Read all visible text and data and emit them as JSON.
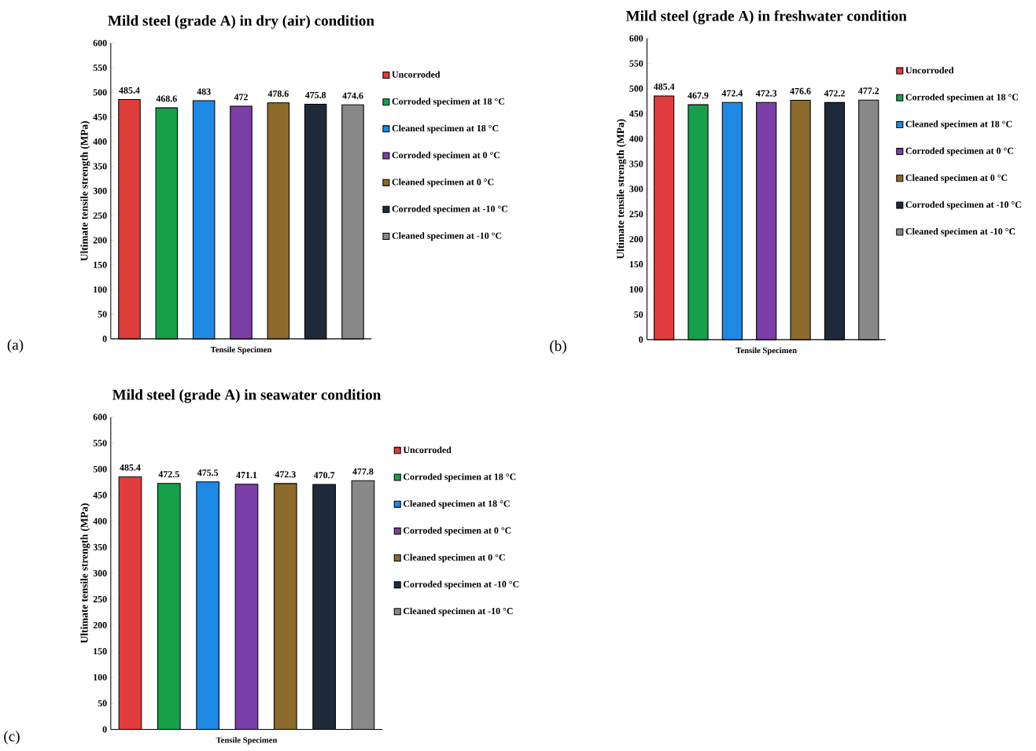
{
  "chart_data": [
    {
      "type": "bar",
      "title": "Mild steel (grade A) in dry (air) condition",
      "xlabel": "Tensile Specimen",
      "ylabel": "Ultimate tensile strength (MPa)",
      "categories": [
        null
      ],
      "ylim": [
        0,
        600
      ],
      "yticks": [
        0,
        50,
        100,
        150,
        200,
        250,
        300,
        350,
        400,
        450,
        500,
        550,
        600
      ],
      "data_labels": true,
      "legend": "right",
      "annotations": [
        "(a)"
      ],
      "series": [
        {
          "name": "Uncorroded",
          "color": "#e03c3c",
          "values": [
            485.4
          ]
        },
        {
          "name": "Corroded specimen at 18 °C",
          "color": "#16a04a",
          "values": [
            468.6
          ]
        },
        {
          "name": "Cleaned specimen at 18 °C",
          "color": "#1e88e5",
          "values": [
            483
          ]
        },
        {
          "name": "Corroded specimen at 0 °C",
          "color": "#7b3fa8",
          "values": [
            472
          ]
        },
        {
          "name": "Cleaned specimen at 0 °C",
          "color": "#8b6a2b",
          "values": [
            478.6
          ]
        },
        {
          "name": "Corroded specimen at -10 °C",
          "color": "#1f2a3a",
          "values": [
            475.8
          ]
        },
        {
          "name": "Cleaned specimen at -10 °C",
          "color": "#888888",
          "values": [
            474.6
          ]
        }
      ]
    },
    {
      "type": "bar",
      "title": "Mild steel (grade A) in freshwater condition",
      "xlabel": "Tensile Specimen",
      "ylabel": "Ultimate tensile strength (MPa)",
      "categories": [
        null
      ],
      "ylim": [
        0,
        600
      ],
      "yticks": [
        0,
        50,
        100,
        150,
        200,
        250,
        300,
        350,
        400,
        450,
        500,
        550,
        600
      ],
      "data_labels": true,
      "legend": "right",
      "annotations": [
        "(b)"
      ],
      "series": [
        {
          "name": "Uncorroded",
          "color": "#e03c3c",
          "values": [
            485.4
          ]
        },
        {
          "name": "Corroded specimen at 18 °C",
          "color": "#16a04a",
          "values": [
            467.9
          ]
        },
        {
          "name": "Cleaned specimen at 18 °C",
          "color": "#1e88e5",
          "values": [
            472.4
          ]
        },
        {
          "name": "Corroded specimen at 0 °C",
          "color": "#7b3fa8",
          "values": [
            472.3
          ]
        },
        {
          "name": "Cleaned specimen at 0 °C",
          "color": "#8b6a2b",
          "values": [
            476.6
          ]
        },
        {
          "name": "Corroded specimen at -10 °C",
          "color": "#1f2a3a",
          "values": [
            472.2
          ]
        },
        {
          "name": "Cleaned specimen at -10 °C",
          "color": "#888888",
          "values": [
            477.2
          ]
        }
      ]
    },
    {
      "type": "bar",
      "title": "Mild steel (grade A) in seawater condition",
      "xlabel": "Tensile Specimen",
      "ylabel": "Ultimate tensile strength (MPa)",
      "categories": [
        null
      ],
      "ylim": [
        0,
        600
      ],
      "yticks": [
        0,
        50,
        100,
        150,
        200,
        250,
        300,
        350,
        400,
        450,
        500,
        550,
        600
      ],
      "data_labels": true,
      "legend": "right",
      "annotations": [
        "(c)"
      ],
      "series": [
        {
          "name": "Uncorroded",
          "color": "#e03c3c",
          "values": [
            485.4
          ]
        },
        {
          "name": "Corroded specimen at 18 °C",
          "color": "#16a04a",
          "values": [
            472.5
          ]
        },
        {
          "name": "Cleaned specimen at 18 °C",
          "color": "#1e88e5",
          "values": [
            475.5
          ]
        },
        {
          "name": "Corroded specimen at 0 °C",
          "color": "#7b3fa8",
          "values": [
            471.1
          ]
        },
        {
          "name": "Cleaned specimen at 0 °C",
          "color": "#8b6a2b",
          "values": [
            472.3
          ]
        },
        {
          "name": "Corroded specimen at -10 °C",
          "color": "#1f2a3a",
          "values": [
            470.7
          ]
        },
        {
          "name": "Cleaned specimen at -10 °C",
          "color": "#888888",
          "values": [
            477.8
          ]
        }
      ]
    }
  ]
}
